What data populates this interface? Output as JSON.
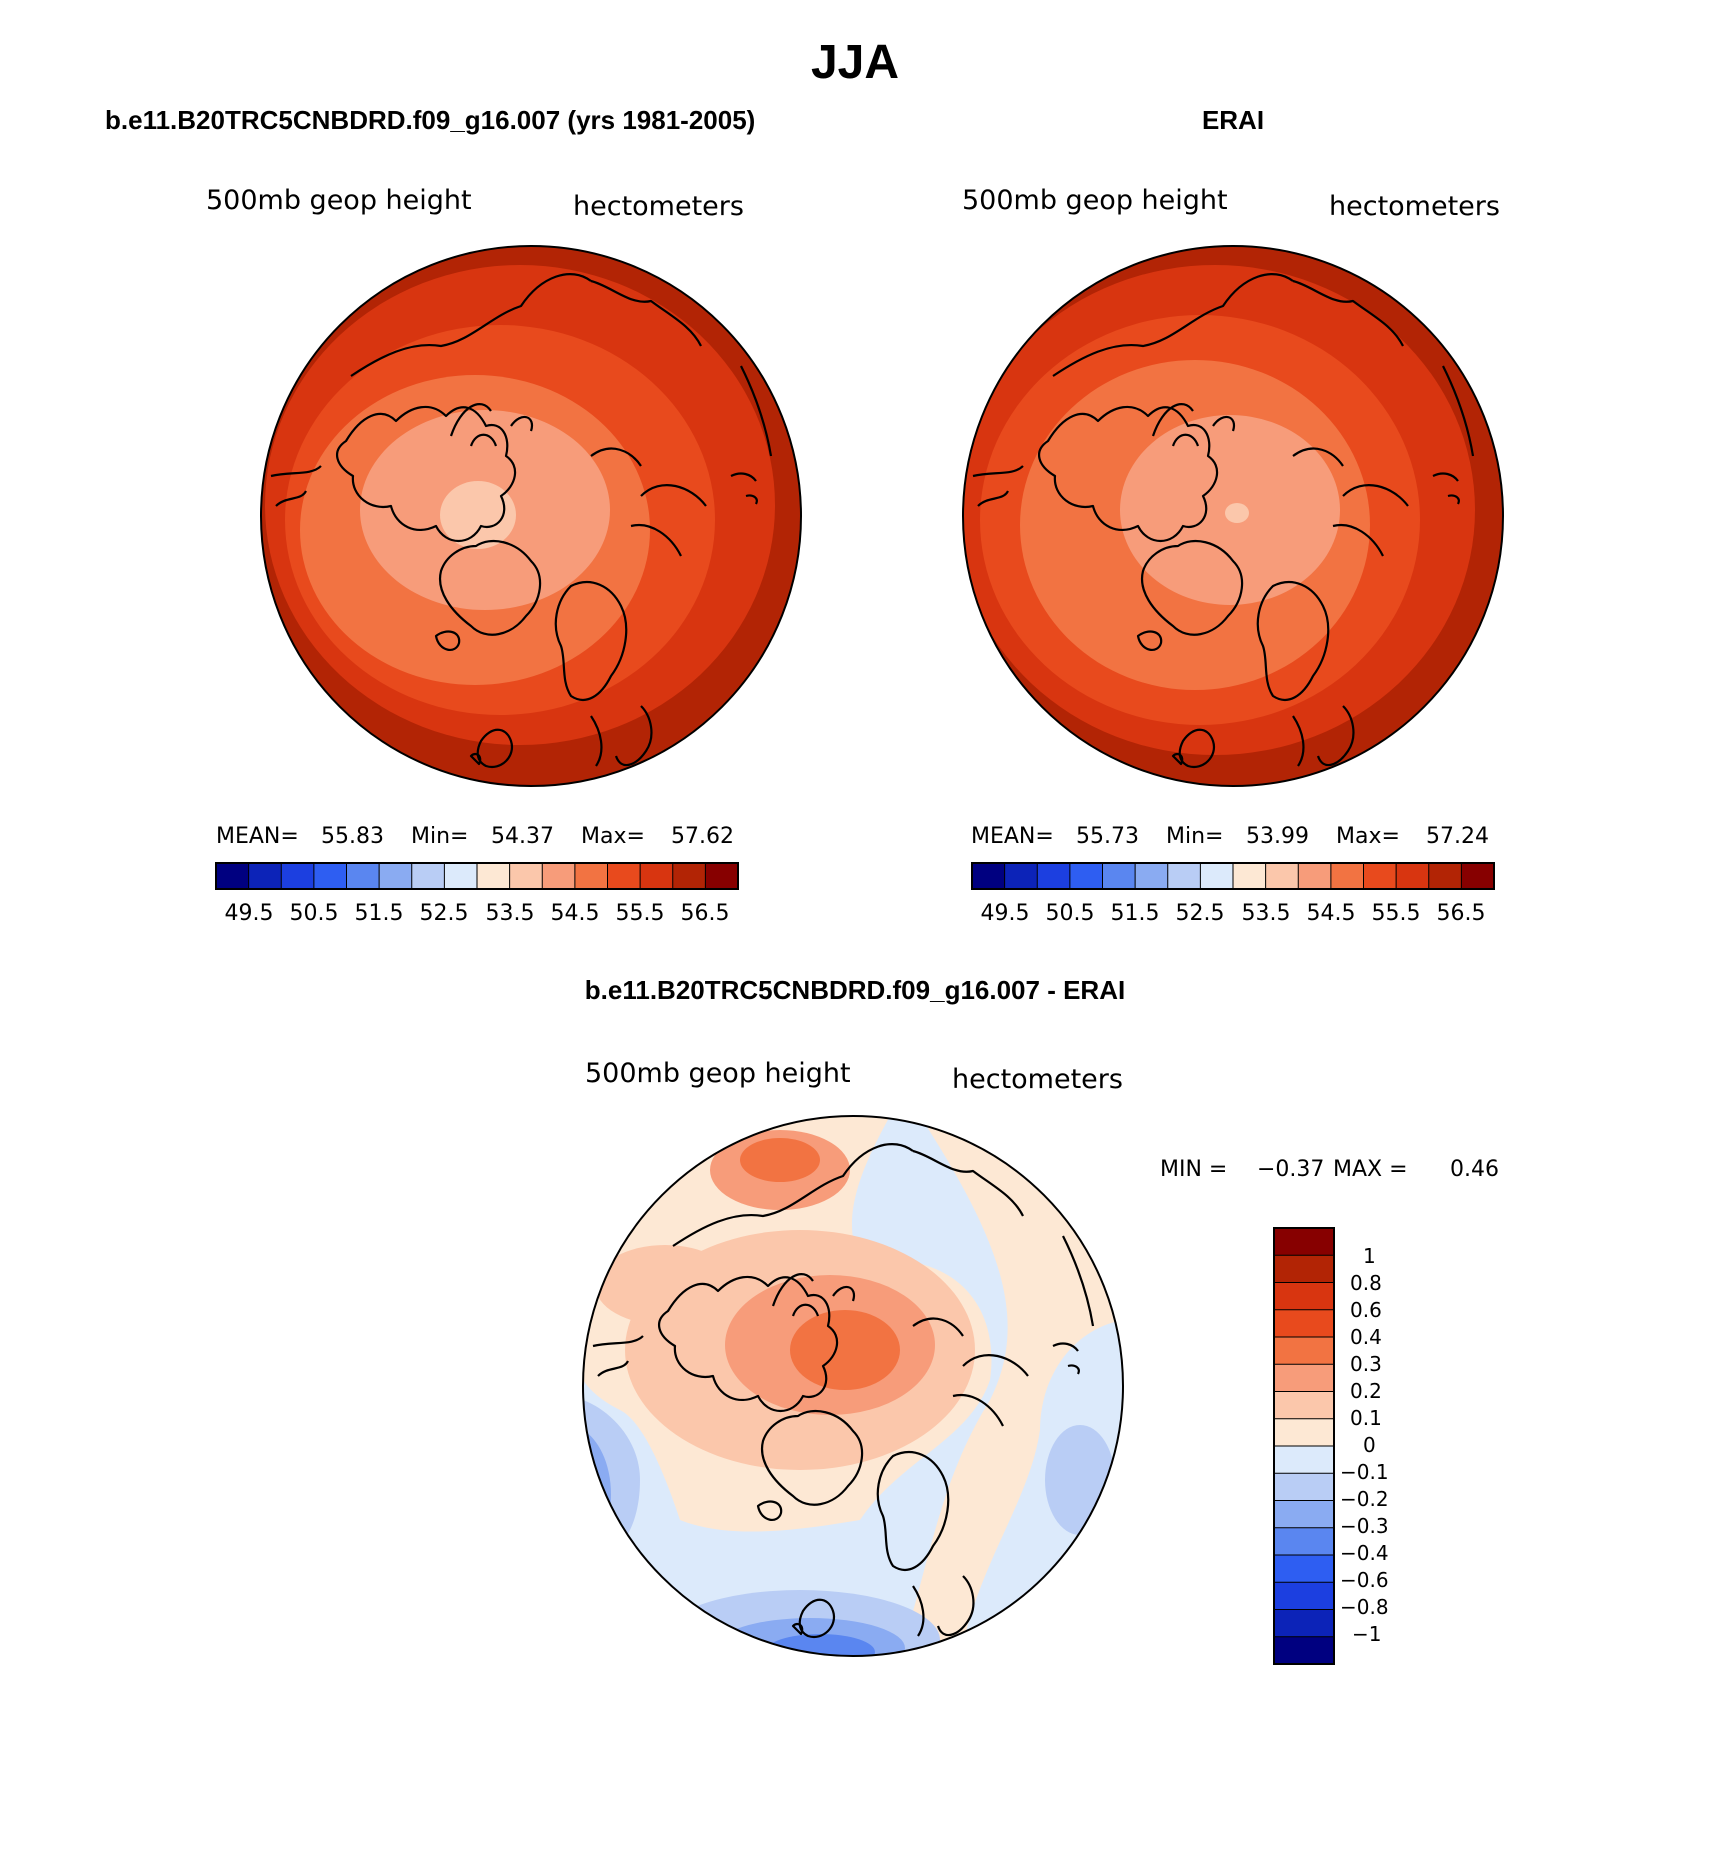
{
  "title": "JJA",
  "panels": [
    {
      "subtitle": "b.e11.B20TRC5CNBDRD.f09_g16.007 (yrs 1981-2005)",
      "left_label": "500mb geop height",
      "right_label": "hectometers",
      "stats": {
        "mean_label": "MEAN=",
        "mean": "55.83",
        "min_label": "Min=",
        "min": "54.37",
        "max_label": "Max=",
        "max": "57.62"
      },
      "levels": [
        "49.5",
        "50.5",
        "51.5",
        "52.5",
        "53.5",
        "54.5",
        "55.5",
        "56.5"
      ]
    },
    {
      "subtitle": "ERAI",
      "left_label": "500mb geop height",
      "right_label": "hectometers",
      "stats": {
        "mean_label": "MEAN=",
        "mean": "55.73",
        "min_label": "Min=",
        "min": "53.99",
        "max_label": "Max=",
        "max": "57.24"
      },
      "levels": [
        "49.5",
        "50.5",
        "51.5",
        "52.5",
        "53.5",
        "54.5",
        "55.5",
        "56.5"
      ]
    },
    {
      "subtitle": "b.e11.B20TRC5CNBDRD.f09_g16.007 - ERAI",
      "left_label": "500mb geop height",
      "right_label": "hectometers",
      "minmax": {
        "min_label": "MIN =",
        "min": "−0.37",
        "max_label": "MAX =",
        "max": "0.46"
      },
      "levels": [
        "1",
        "0.8",
        "0.6",
        "0.4",
        "0.3",
        "0.2",
        "0.1",
        "0",
        "−0.1",
        "−0.2",
        "−0.3",
        "−0.4",
        "−0.6",
        "−0.8",
        "−1"
      ]
    }
  ],
  "colors": {
    "blue_red_16": [
      "#000080",
      "#0c23b8",
      "#1c3fe0",
      "#2e5ef2",
      "#5a86f0",
      "#8aabf2",
      "#b9cdf5",
      "#dceafb",
      "#fde8d4",
      "#fbc7ab",
      "#f79c7a",
      "#f27342",
      "#e84a1d",
      "#d83510",
      "#b22405",
      "#870000"
    ]
  }
}
